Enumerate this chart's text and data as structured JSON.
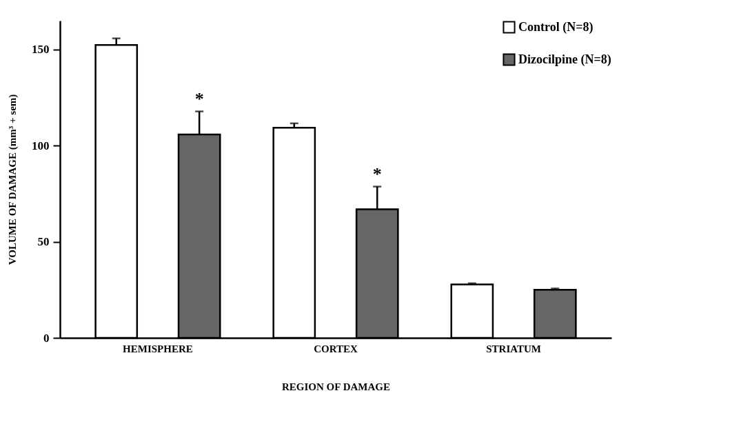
{
  "chart_data": {
    "type": "bar",
    "xlabel": "REGION OF DAMAGE",
    "ylabel": "VOLUME OF DAMAGE   (mm³ + sem)",
    "categories": [
      "HEMISPHERE",
      "CORTEX",
      "STRIATUM"
    ],
    "series": [
      {
        "name": "Control (N=8)",
        "color": "#ffffff",
        "values": [
          152.4,
          109.3,
          27.8
        ],
        "errors": [
          [
            152.4,
            155.8
          ],
          [
            109.3,
            111.6
          ],
          [
            27.8,
            28.4
          ]
        ]
      },
      {
        "name": "Dizocilpine (N=8)",
        "color": "#666666",
        "values": [
          105.8,
          66.9,
          25
        ],
        "errors": [
          [
            105.8,
            117.8
          ],
          [
            66.9,
            78.7
          ],
          [
            25,
            25.7
          ]
        ]
      }
    ],
    "ylim": [
      0,
      165
    ],
    "yticks": [
      0,
      50,
      100,
      150
    ],
    "legend": "top right",
    "annotations": [
      "*",
      "*"
    ]
  }
}
